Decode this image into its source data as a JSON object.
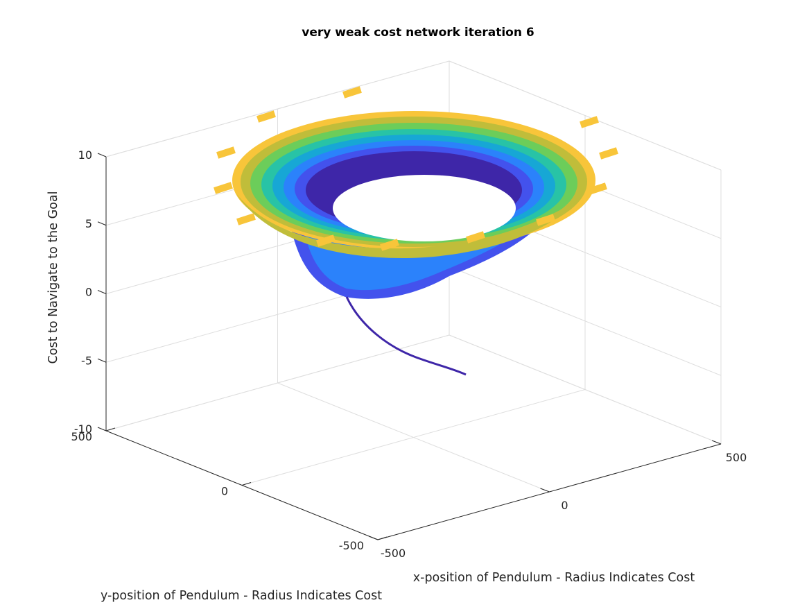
{
  "chart_data": {
    "type": "surface3d",
    "title": "very weak cost network iteration 6",
    "xlabel": "x-position of Pendulum - Radius Indicates Cost",
    "ylabel": "y-position of Pendulum - Radius Indicates Cost",
    "zlabel": "Cost to Navigate to the Goal",
    "xlim": [
      -500,
      500
    ],
    "ylim": [
      -500,
      500
    ],
    "zlim": [
      -10,
      10
    ],
    "x_ticks": [
      "-500",
      "0",
      "500"
    ],
    "y_ticks": [
      "-500",
      "0",
      "500"
    ],
    "z_ticks": [
      "-10",
      "-5",
      "0",
      "5",
      "10"
    ],
    "grid": true,
    "colormap": [
      "#3e26a8",
      "#4352ed",
      "#2b82fb",
      "#17a7d5",
      "#28c3a6",
      "#6ccd5a",
      "#c0bd3a",
      "#f8c53a"
    ],
    "surface": {
      "shape": "funnel",
      "outer_rim_z": 5,
      "inner_throat_z": 1,
      "tail_bottom_z": -4
    }
  }
}
